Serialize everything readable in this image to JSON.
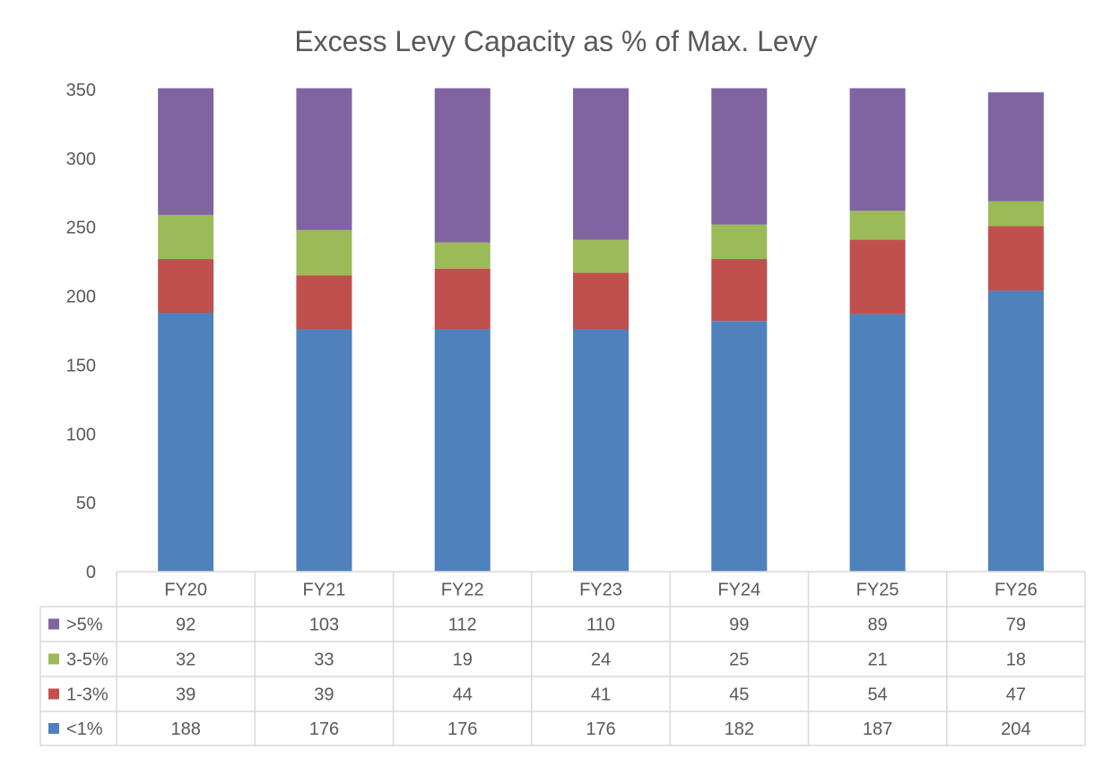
{
  "chart_data": {
    "type": "bar",
    "stacked": true,
    "title": "Excess Levy Capacity as % of Max. Levy",
    "categories": [
      "FY20",
      "FY21",
      "FY22",
      "FY23",
      "FY24",
      "FY25",
      "FY26"
    ],
    "series": [
      {
        "name": "<1%",
        "color": "#4F81BD",
        "values": [
          188,
          176,
          176,
          176,
          182,
          187,
          204
        ]
      },
      {
        "name": "1-3%",
        "color": "#C0504D",
        "values": [
          39,
          39,
          44,
          41,
          45,
          54,
          47
        ]
      },
      {
        "name": "3-5%",
        "color": "#9BBB59",
        "values": [
          32,
          33,
          19,
          24,
          25,
          21,
          18
        ]
      },
      {
        "name": ">5%",
        "color": "#8064A2",
        "values": [
          92,
          103,
          112,
          110,
          99,
          89,
          79
        ]
      }
    ],
    "ylim": [
      0,
      350
    ],
    "yticks": [
      0,
      50,
      100,
      150,
      200,
      250,
      300,
      350
    ],
    "grid": false,
    "legend": "data-table",
    "data_table_row_order": [
      ">5%",
      "3-5%",
      "1-3%",
      "<1%"
    ]
  }
}
